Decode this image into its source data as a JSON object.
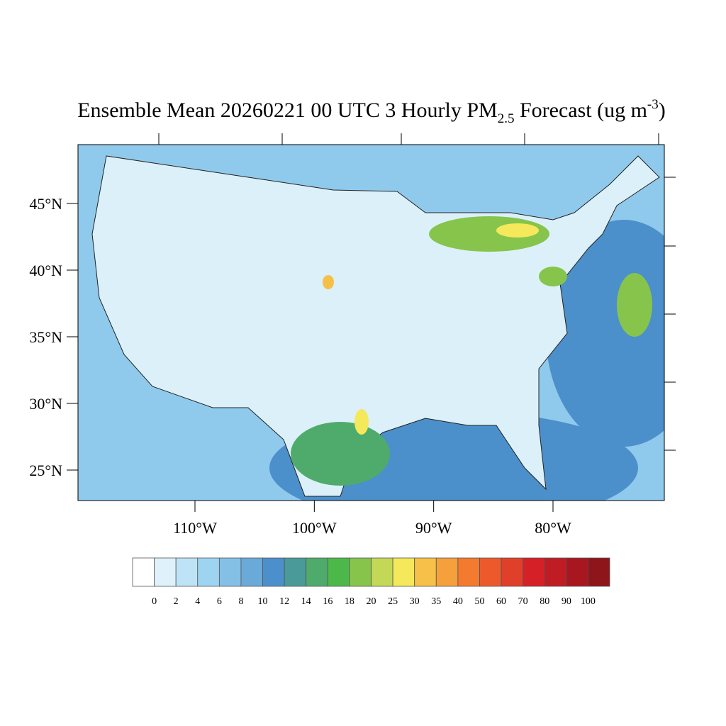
{
  "title": {
    "main": "Ensemble Mean 20260221 00 UTC 3 Hourly PM",
    "sub": "2.5",
    "tail": " Forecast (ug m",
    "sup": "-3",
    "end": ")"
  },
  "lat_ticks": [
    {
      "value": 45,
      "label": "45°N"
    },
    {
      "value": 40,
      "label": "40°N"
    },
    {
      "value": 35,
      "label": "35°N"
    },
    {
      "value": 30,
      "label": "30°N"
    },
    {
      "value": 25,
      "label": "25°N"
    }
  ],
  "lon_ticks": [
    {
      "value": -110,
      "label": "110°W"
    },
    {
      "value": -100,
      "label": "100°W"
    },
    {
      "value": -90,
      "label": "90°W"
    },
    {
      "value": -80,
      "label": "80°W"
    }
  ],
  "colorbar": {
    "levels": [
      0,
      2,
      4,
      6,
      8,
      10,
      12,
      14,
      16,
      18,
      20,
      25,
      30,
      35,
      40,
      50,
      60,
      70,
      80,
      90,
      100
    ],
    "colors": [
      "#ffffff",
      "#dff1fb",
      "#bfe3f6",
      "#9fd4f1",
      "#84c0e6",
      "#6aaad9",
      "#4b8fcb",
      "#4a9a9a",
      "#4fab6c",
      "#4db84a",
      "#86c44c",
      "#c4d857",
      "#f5e85a",
      "#f7c048",
      "#f5a03c",
      "#f37a2e",
      "#ec5a2c",
      "#e0402a",
      "#d62028",
      "#bf1c24",
      "#a8171f",
      "#8e1519"
    ]
  }
}
